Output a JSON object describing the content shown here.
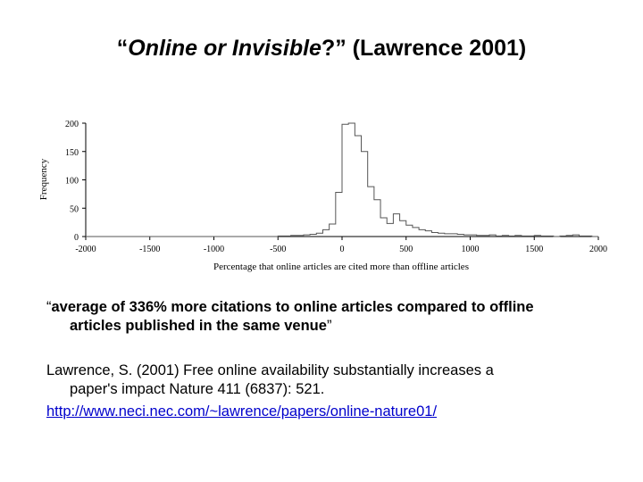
{
  "slide": {
    "title_open_quote": "“",
    "title_italic": "Online or Invisible",
    "title_close": "?” (Lawrence 2001)",
    "quote_open": "“",
    "quote_line1": "average of 336% more citations to online articles compared to offline",
    "quote_line2": "articles published in the same venue",
    "quote_close": "”",
    "citation_line1": "Lawrence, S. (2001) Free online availability substantially increases a",
    "citation_line2": "paper's impact Nature 411 (6837): 521.",
    "link_text": "http://www.neci.nec.com/~lawrence/papers/online-nature01/"
  },
  "chart_data": {
    "type": "histogram",
    "xlabel": "Percentage that online articles are cited more than offline articles",
    "ylabel": "Frequency",
    "xlim": [
      -2000,
      2000
    ],
    "ylim": [
      0,
      200
    ],
    "xticks": [
      -2000,
      -1500,
      -1000,
      -500,
      0,
      500,
      1000,
      1500,
      2000
    ],
    "xtick_labels": [
      "-2000",
      "-1500",
      "-1000",
      "-500",
      "0",
      "500",
      "1000",
      "1500",
      "2000"
    ],
    "yticks": [
      0,
      50,
      100,
      150,
      200
    ],
    "ytick_labels": [
      "0",
      "50",
      "100",
      "150",
      "200"
    ],
    "grid": false,
    "bin_width": 50,
    "bins": [
      {
        "x0": -2000,
        "y": 0
      },
      {
        "x0": -500,
        "y": 1
      },
      {
        "x0": -450,
        "y": 1
      },
      {
        "x0": -400,
        "y": 2
      },
      {
        "x0": -350,
        "y": 2
      },
      {
        "x0": -300,
        "y": 3
      },
      {
        "x0": -250,
        "y": 4
      },
      {
        "x0": -200,
        "y": 6
      },
      {
        "x0": -150,
        "y": 12
      },
      {
        "x0": -100,
        "y": 22
      },
      {
        "x0": -50,
        "y": 78
      },
      {
        "x0": 0,
        "y": 198
      },
      {
        "x0": 50,
        "y": 200
      },
      {
        "x0": 100,
        "y": 178
      },
      {
        "x0": 150,
        "y": 150
      },
      {
        "x0": 200,
        "y": 88
      },
      {
        "x0": 250,
        "y": 65
      },
      {
        "x0": 300,
        "y": 33
      },
      {
        "x0": 350,
        "y": 23
      },
      {
        "x0": 400,
        "y": 40
      },
      {
        "x0": 450,
        "y": 28
      },
      {
        "x0": 500,
        "y": 20
      },
      {
        "x0": 550,
        "y": 16
      },
      {
        "x0": 600,
        "y": 12
      },
      {
        "x0": 650,
        "y": 10
      },
      {
        "x0": 700,
        "y": 7
      },
      {
        "x0": 750,
        "y": 6
      },
      {
        "x0": 800,
        "y": 5
      },
      {
        "x0": 850,
        "y": 5
      },
      {
        "x0": 900,
        "y": 4
      },
      {
        "x0": 950,
        "y": 3
      },
      {
        "x0": 1000,
        "y": 3
      },
      {
        "x0": 1050,
        "y": 2
      },
      {
        "x0": 1100,
        "y": 2
      },
      {
        "x0": 1150,
        "y": 3
      },
      {
        "x0": 1200,
        "y": 1
      },
      {
        "x0": 1250,
        "y": 2
      },
      {
        "x0": 1300,
        "y": 1
      },
      {
        "x0": 1350,
        "y": 2
      },
      {
        "x0": 1400,
        "y": 1
      },
      {
        "x0": 1450,
        "y": 1
      },
      {
        "x0": 1500,
        "y": 2
      },
      {
        "x0": 1550,
        "y": 1
      },
      {
        "x0": 1600,
        "y": 1
      },
      {
        "x0": 1650,
        "y": 0
      },
      {
        "x0": 1700,
        "y": 1
      },
      {
        "x0": 1750,
        "y": 2
      },
      {
        "x0": 1800,
        "y": 3
      },
      {
        "x0": 1850,
        "y": 1
      },
      {
        "x0": 1900,
        "y": 1
      },
      {
        "x0": 1950,
        "y": 0
      }
    ]
  }
}
